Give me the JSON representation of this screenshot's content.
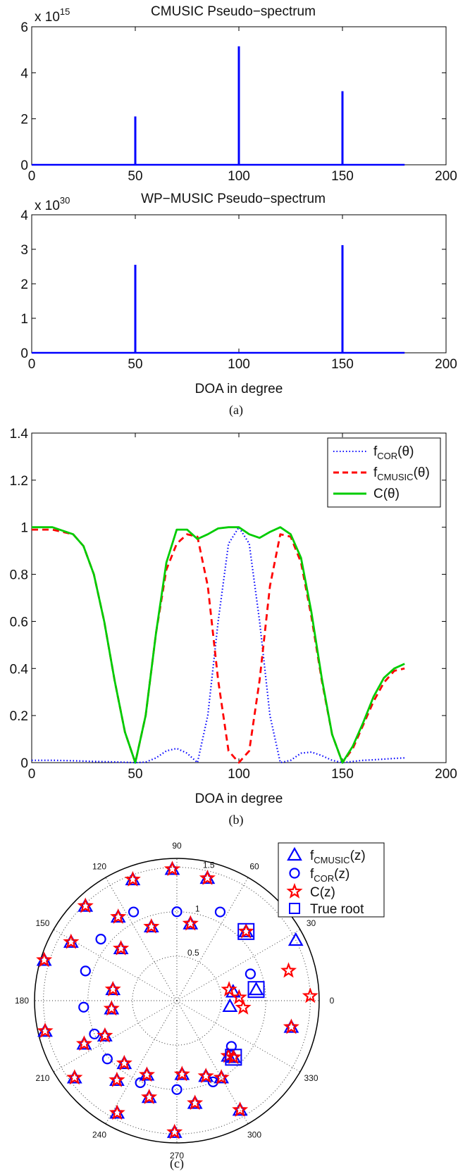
{
  "chart_data": [
    {
      "type": "line",
      "title": "CMUSIC Pseudo−spectrum",
      "y_exponent_label": "x 10",
      "y_exponent": "15",
      "xlim": [
        0,
        200
      ],
      "ylim": [
        0,
        6
      ],
      "xticks": [
        "0",
        "50",
        "100",
        "150",
        "200"
      ],
      "yticks": [
        "0",
        "2",
        "4",
        "6"
      ],
      "color": "#0000ff",
      "series": [
        {
          "values": [
            {
              "x": 0,
              "y": 0
            },
            {
              "x": 50,
              "y": 2.1
            },
            {
              "x": 100,
              "y": 5.15
            },
            {
              "x": 150,
              "y": 3.2
            },
            {
              "x": 180,
              "y": 0
            }
          ]
        }
      ]
    },
    {
      "type": "line",
      "title": "WP−MUSIC Pseudo−spectrum",
      "y_exponent_label": "x 10",
      "y_exponent": "30",
      "xlabel": "DOA in degree",
      "xlim": [
        0,
        200
      ],
      "ylim": [
        0,
        4
      ],
      "xticks": [
        "0",
        "50",
        "100",
        "150",
        "200"
      ],
      "yticks": [
        "0",
        "1",
        "2",
        "3",
        "4"
      ],
      "color": "#0000ff",
      "series": [
        {
          "values": [
            {
              "x": 0,
              "y": 0
            },
            {
              "x": 50,
              "y": 2.55
            },
            {
              "x": 150,
              "y": 3.12
            },
            {
              "x": 180,
              "y": 0
            }
          ]
        }
      ]
    },
    {
      "type": "line",
      "xlabel": "DOA in degree",
      "xlim": [
        0,
        200
      ],
      "ylim": [
        0,
        1.4
      ],
      "xticks": [
        "0",
        "50",
        "100",
        "150",
        "200"
      ],
      "yticks": [
        "0",
        "0.2",
        "0.4",
        "0.6",
        "0.8",
        "1",
        "1.2",
        "1.4"
      ],
      "legend_position": "top-right",
      "series": [
        {
          "name": "f_COR(θ)",
          "color": "#0000ff",
          "style": "dotted",
          "x": [
            0,
            10,
            20,
            30,
            40,
            50,
            55,
            60,
            65,
            70,
            75,
            80,
            85,
            90,
            95,
            100,
            105,
            110,
            115,
            120,
            125,
            130,
            135,
            140,
            145,
            150,
            155,
            160,
            165,
            170,
            175,
            180
          ],
          "y": [
            0.01,
            0.01,
            0.008,
            0.005,
            0.003,
            0,
            0.002,
            0.02,
            0.05,
            0.06,
            0.04,
            0,
            0.2,
            0.6,
            0.93,
            1.0,
            0.93,
            0.6,
            0.2,
            0.0,
            0.01,
            0.04,
            0.045,
            0.03,
            0.01,
            0,
            0.005,
            0.01,
            0.012,
            0.015,
            0.018,
            0.02
          ]
        },
        {
          "name": "f_CMUSIC(θ)",
          "color": "#ff0000",
          "style": "dashed",
          "x": [
            0,
            10,
            20,
            25,
            30,
            35,
            40,
            45,
            50,
            55,
            60,
            65,
            70,
            75,
            80,
            85,
            90,
            95,
            100,
            105,
            110,
            115,
            120,
            125,
            130,
            135,
            140,
            145,
            150,
            155,
            160,
            165,
            170,
            175,
            180
          ],
          "y": [
            0.99,
            0.99,
            0.97,
            0.92,
            0.8,
            0.6,
            0.35,
            0.13,
            0,
            0.2,
            0.55,
            0.82,
            0.93,
            0.97,
            0.96,
            0.75,
            0.35,
            0.05,
            0,
            0.05,
            0.35,
            0.75,
            0.97,
            0.96,
            0.85,
            0.62,
            0.35,
            0.12,
            0,
            0.06,
            0.16,
            0.26,
            0.34,
            0.39,
            0.4
          ]
        },
        {
          "name": "C(θ)",
          "color": "#00cc00",
          "style": "solid",
          "x": [
            0,
            10,
            20,
            25,
            30,
            35,
            40,
            45,
            50,
            55,
            60,
            65,
            70,
            75,
            80,
            85,
            90,
            95,
            100,
            105,
            110,
            115,
            120,
            125,
            130,
            135,
            140,
            145,
            150,
            155,
            160,
            165,
            170,
            175,
            180
          ],
          "y": [
            1.0,
            1.0,
            0.97,
            0.92,
            0.8,
            0.6,
            0.35,
            0.13,
            0,
            0.2,
            0.55,
            0.85,
            0.99,
            0.99,
            0.95,
            0.97,
            0.995,
            1.0,
            1.0,
            0.97,
            0.955,
            0.98,
            1.0,
            0.97,
            0.87,
            0.64,
            0.36,
            0.12,
            0,
            0.07,
            0.17,
            0.28,
            0.36,
            0.4,
            0.42
          ]
        }
      ]
    },
    {
      "type": "scatter",
      "subtype": "polar",
      "angle_labels": [
        "90",
        "60",
        "30",
        "0",
        "330",
        "300",
        "270",
        "240",
        "210",
        "180",
        "150",
        "120"
      ],
      "radius_labels": [
        "0.5",
        "1",
        "1.5"
      ],
      "rlim": [
        0,
        1.6
      ],
      "legend_position": "top-right",
      "series": [
        {
          "name": "f_CMUSIC(z)",
          "marker": "triangle",
          "color": "#0000ff",
          "points": [
            [
              92,
              1.48
            ],
            [
              76,
              1.42
            ],
            [
              45,
              1.1
            ],
            [
              27,
              1.5
            ],
            [
              9,
              0.64
            ],
            [
              -6,
              0.6
            ],
            [
              -13,
              1.32
            ],
            [
              -45,
              0.9
            ],
            [
              -60,
              1.42
            ],
            [
              -91,
              1.48
            ],
            [
              -118,
              1.43
            ],
            [
              -143,
              1.44
            ],
            [
              -167,
              1.52
            ],
            [
              163,
              1.56
            ],
            [
              134,
              1.48
            ],
            [
              110,
              1.45
            ],
            [
              151,
              1.36
            ],
            [
              125,
              1.15
            ],
            [
              137,
              0.86
            ],
            [
              109,
              0.88
            ],
            [
              80,
              0.88
            ],
            [
              170,
              0.73
            ],
            [
              -173,
              0.74
            ],
            [
              -154,
              0.9
            ],
            [
              -130,
              0.92
            ],
            [
              -112,
              0.9
            ],
            [
              -86,
              0.83
            ],
            [
              -69,
              0.91
            ],
            [
              -155,
              1.15
            ],
            [
              -127,
              1.12
            ],
            [
              -106,
              1.13
            ],
            [
              -80,
              1.17
            ],
            [
              -60,
              1.0
            ],
            [
              -47,
              0.85
            ],
            [
              8,
              0.9
            ]
          ]
        },
        {
          "name": "f_COR(z)",
          "marker": "circle",
          "color": "#0000ff",
          "points": [
            [
              90,
              1.0
            ],
            [
              64,
              1.11
            ],
            [
              116,
              1.11
            ],
            [
              141,
              1.1
            ],
            [
              162,
              1.08
            ],
            [
              -176,
              1.05
            ],
            [
              -158,
              1.0
            ],
            [
              -140,
              1.02
            ],
            [
              -114,
              1.01
            ],
            [
              -90,
              1.0
            ],
            [
              -66,
              1.0
            ],
            [
              -40,
              0.8
            ],
            [
              20,
              0.88
            ]
          ]
        },
        {
          "name": "C(z)",
          "marker": "star",
          "color": "#ff0000",
          "points": [
            [
              92,
              1.48
            ],
            [
              76,
              1.42
            ],
            [
              45,
              1.1
            ],
            [
              15,
              1.3
            ],
            [
              2,
              1.5
            ],
            [
              -13,
              1.32
            ],
            [
              -6,
              0.75
            ],
            [
              3,
              0.7
            ],
            [
              12,
              0.6
            ],
            [
              -45,
              0.9
            ],
            [
              -60,
              1.42
            ],
            [
              -91,
              1.48
            ],
            [
              -118,
              1.43
            ],
            [
              -143,
              1.44
            ],
            [
              -167,
              1.52
            ],
            [
              163,
              1.56
            ],
            [
              134,
              1.48
            ],
            [
              110,
              1.45
            ],
            [
              151,
              1.36
            ],
            [
              125,
              1.15
            ],
            [
              137,
              0.86
            ],
            [
              109,
              0.88
            ],
            [
              80,
              0.88
            ],
            [
              170,
              0.73
            ],
            [
              -173,
              0.74
            ],
            [
              -154,
              0.9
            ],
            [
              -130,
              0.92
            ],
            [
              -112,
              0.9
            ],
            [
              -86,
              0.83
            ],
            [
              -69,
              0.91
            ],
            [
              -155,
              1.15
            ],
            [
              -127,
              1.12
            ],
            [
              -106,
              1.13
            ],
            [
              -80,
              1.17
            ],
            [
              -60,
              1.0
            ],
            [
              -47,
              0.85
            ]
          ]
        },
        {
          "name": "True root",
          "marker": "square",
          "color": "#0000ff",
          "points": [
            [
              45,
              1.1
            ],
            [
              8,
              0.9
            ],
            [
              -45,
              0.9
            ]
          ]
        }
      ]
    }
  ],
  "captions": [
    "(a)",
    "(b)",
    "(c)"
  ],
  "legend_b": [
    {
      "base": "f",
      "sub": "COR",
      "suffix": "(θ)"
    },
    {
      "base": "f",
      "sub": "CMUSIC",
      "suffix": "(θ)"
    },
    {
      "base": "C(θ)",
      "sub": "",
      "suffix": ""
    }
  ],
  "legend_c": [
    {
      "base": "f",
      "sub": "CMUSIC",
      "suffix": "(z)"
    },
    {
      "base": "f",
      "sub": "COR",
      "suffix": "(z)"
    },
    {
      "base": "C(z)",
      "sub": "",
      "suffix": ""
    },
    {
      "base": "True root",
      "sub": "",
      "suffix": ""
    }
  ]
}
